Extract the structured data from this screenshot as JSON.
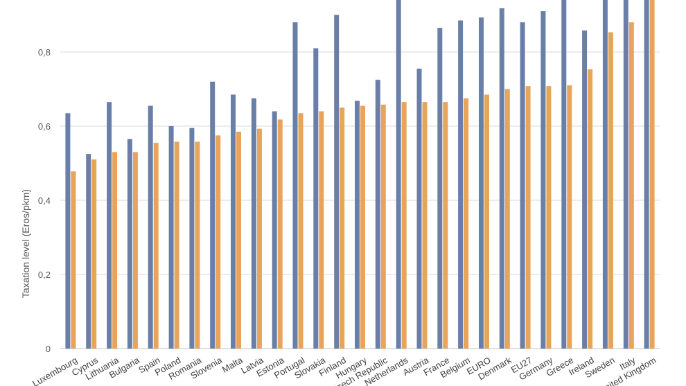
{
  "chart_data": {
    "type": "bar",
    "ylabel": "Taxation level (Eros/pkm)",
    "xlabel": "",
    "ylim": [
      0,
      0.95
    ],
    "yticks": [
      "0",
      "0,2",
      "0,4",
      "0,6",
      "0,8"
    ],
    "ytick_values": [
      0,
      0.2,
      0.4,
      0.6,
      0.8
    ],
    "grid": true,
    "colors": [
      "#6a7fa8",
      "#e8a45a"
    ],
    "categories": [
      "Luxembourg",
      "Cyprus",
      "Lithuania",
      "Bulgaria",
      "Spain",
      "Poland",
      "Romania",
      "Slovenia",
      "Malta",
      "Latvia",
      "Estonia",
      "Portugal",
      "Slovakia",
      "Finland",
      "Hungary",
      "Czech Republic",
      "Netherlands",
      "Austria",
      "France",
      "Belgium",
      "EURO",
      "Denmark",
      "EU27",
      "Germany",
      "Greece",
      "Ireland",
      "Sweden",
      "Italy",
      "United Kingdom"
    ],
    "series": [
      {
        "values": [
          0.635,
          0.525,
          0.665,
          0.565,
          0.655,
          0.6,
          0.595,
          0.72,
          0.685,
          0.675,
          0.64,
          0.88,
          0.81,
          0.9,
          0.668,
          0.725,
          0.95,
          0.755,
          0.865,
          0.885,
          0.893,
          0.918,
          0.88,
          0.91,
          0.95,
          0.858,
          0.95,
          0.95,
          0.95
        ]
      },
      {
        "values": [
          0.478,
          0.51,
          0.53,
          0.53,
          0.555,
          0.558,
          0.558,
          0.575,
          0.585,
          0.593,
          0.618,
          0.635,
          0.64,
          0.65,
          0.655,
          0.658,
          0.665,
          0.665,
          0.665,
          0.675,
          0.685,
          0.7,
          0.708,
          0.708,
          0.71,
          0.753,
          0.853,
          0.88,
          0.95
        ]
      }
    ]
  }
}
